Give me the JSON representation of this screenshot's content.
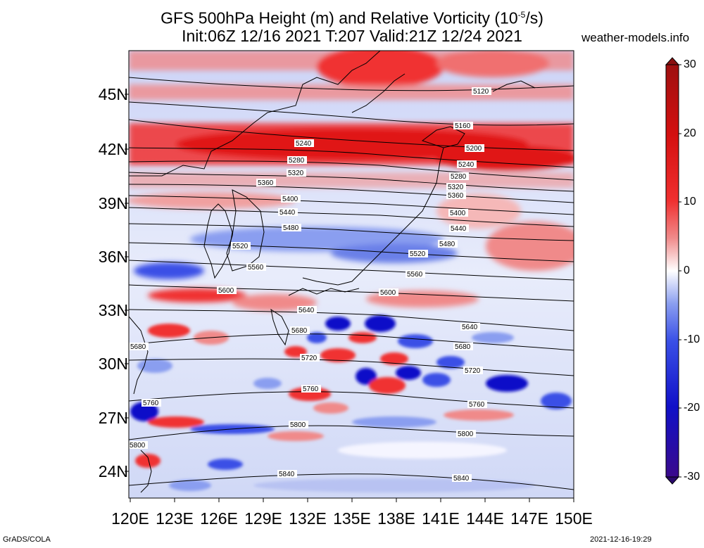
{
  "title_line1": "GFS 500hPa Height (m) and Relative Vorticity (10",
  "title_line1_exp": "-5",
  "title_line1_tail": "/s)",
  "title_line2": "Init:06Z 12/16 2021 T:207 Valid:21Z 12/24 2021",
  "site": "weather-models.info",
  "footer_left": "GrADS/COLA",
  "footer_right": "2021-12-16-19:29",
  "lat_labels": [
    "45N",
    "42N",
    "39N",
    "36N",
    "33N",
    "30N",
    "27N",
    "24N"
  ],
  "lon_labels": [
    "120E",
    "123E",
    "126E",
    "129E",
    "132E",
    "135E",
    "138E",
    "141E",
    "144E",
    "147E",
    "150E"
  ],
  "colorbar": {
    "ticks": [
      "30",
      "20",
      "10",
      "0",
      "-10",
      "-20",
      "-30"
    ],
    "colors": [
      "#3a0a8c",
      "#1010c8",
      "#3a50e6",
      "#8a9ef0",
      "#ccd4f7",
      "#ffffff",
      "#f7cccc",
      "#f08a8a",
      "#f03030",
      "#d41010",
      "#9e1010"
    ]
  },
  "contour_labels": [
    "5120",
    "5160",
    "5200",
    "5240",
    "5280",
    "5320",
    "5360",
    "5400",
    "5440",
    "5480",
    "5520",
    "5560",
    "5600",
    "5640",
    "5680",
    "5720",
    "5760",
    "5800",
    "5840"
  ]
}
